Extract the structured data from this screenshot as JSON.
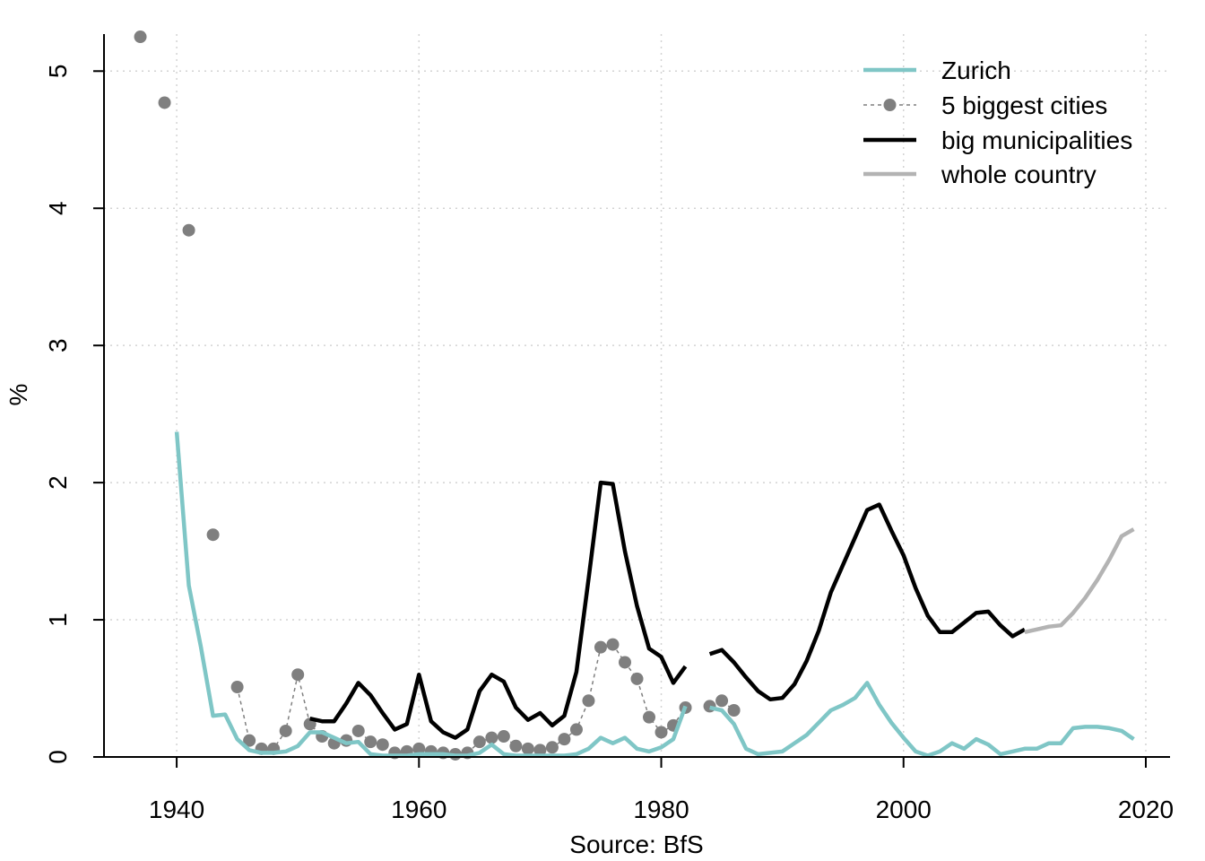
{
  "chart_data": {
    "type": "line",
    "ylabel": "%",
    "xlabel": "Source: BfS",
    "xlim": [
      1934,
      2022
    ],
    "ylim": [
      0,
      5.27
    ],
    "x_ticks": [
      1940,
      1960,
      1980,
      2000,
      2020
    ],
    "y_ticks": [
      0,
      1,
      2,
      3,
      4,
      5
    ],
    "grid": true,
    "legend_position": "top-right",
    "series": [
      {
        "name": "Zurich",
        "style": "line",
        "color": "#7fc6c6",
        "points": [
          [
            1940,
            2.37
          ],
          [
            1941,
            1.25
          ],
          [
            1942,
            0.8
          ],
          [
            1943,
            0.3
          ],
          [
            1944,
            0.31
          ],
          [
            1945,
            0.13
          ],
          [
            1946,
            0.05
          ],
          [
            1947,
            0.03
          ],
          [
            1948,
            0.03
          ],
          [
            1949,
            0.04
          ],
          [
            1950,
            0.08
          ],
          [
            1951,
            0.18
          ],
          [
            1952,
            0.18
          ],
          [
            1953,
            0.14
          ],
          [
            1954,
            0.1
          ],
          [
            1955,
            0.11
          ],
          [
            1956,
            0.02
          ],
          [
            1957,
            0.01
          ],
          [
            1958,
            0.01
          ],
          [
            1959,
            0.01
          ],
          [
            1960,
            0.02
          ],
          [
            1961,
            0.02
          ],
          [
            1962,
            0.02
          ],
          [
            1963,
            0.01
          ],
          [
            1964,
            0.01
          ],
          [
            1965,
            0.03
          ],
          [
            1966,
            0.09
          ],
          [
            1967,
            0.02
          ],
          [
            1968,
            0.01
          ],
          [
            1969,
            0.01
          ],
          [
            1970,
            0.01
          ],
          [
            1971,
            0.01
          ],
          [
            1972,
            0.01
          ],
          [
            1973,
            0.02
          ],
          [
            1974,
            0.06
          ],
          [
            1975,
            0.14
          ],
          [
            1976,
            0.1
          ],
          [
            1977,
            0.14
          ],
          [
            1978,
            0.06
          ],
          [
            1979,
            0.04
          ],
          [
            1980,
            0.07
          ],
          [
            1981,
            0.13
          ],
          [
            1982,
            0.37
          ],
          [
            1983,
            null
          ],
          [
            1984,
            0.36
          ],
          [
            1985,
            0.34
          ],
          [
            1986,
            0.24
          ],
          [
            1987,
            0.06
          ],
          [
            1988,
            0.02
          ],
          [
            1989,
            0.03
          ],
          [
            1990,
            0.04
          ],
          [
            1991,
            0.1
          ],
          [
            1992,
            0.16
          ],
          [
            1993,
            0.25
          ],
          [
            1994,
            0.34
          ],
          [
            1995,
            0.38
          ],
          [
            1996,
            0.43
          ],
          [
            1997,
            0.54
          ],
          [
            1998,
            0.38
          ],
          [
            1999,
            0.25
          ],
          [
            2000,
            0.14
          ],
          [
            2001,
            0.04
          ],
          [
            2002,
            0.01
          ],
          [
            2003,
            0.04
          ],
          [
            2004,
            0.1
          ],
          [
            2005,
            0.06
          ],
          [
            2006,
            0.13
          ],
          [
            2007,
            0.09
          ],
          [
            2008,
            0.02
          ],
          [
            2009,
            0.04
          ],
          [
            2010,
            0.06
          ],
          [
            2011,
            0.06
          ],
          [
            2012,
            0.1
          ],
          [
            2013,
            0.1
          ],
          [
            2014,
            0.21
          ],
          [
            2015,
            0.22
          ],
          [
            2016,
            0.22
          ],
          [
            2017,
            0.21
          ],
          [
            2018,
            0.19
          ],
          [
            2019,
            0.13
          ]
        ]
      },
      {
        "name": "5 biggest cities",
        "style": "dashed-points",
        "color": "#7f7f7f",
        "points": [
          [
            1937,
            5.25
          ],
          [
            1938,
            null
          ],
          [
            1939,
            4.77
          ],
          [
            1940,
            null
          ],
          [
            1941,
            3.84
          ],
          [
            1942,
            null
          ],
          [
            1943,
            1.62
          ],
          [
            1944,
            null
          ],
          [
            1945,
            0.51
          ],
          [
            1946,
            0.12
          ],
          [
            1947,
            0.06
          ],
          [
            1948,
            0.06
          ],
          [
            1949,
            0.19
          ],
          [
            1950,
            0.6
          ],
          [
            1951,
            0.24
          ],
          [
            1952,
            0.15
          ],
          [
            1953,
            0.1
          ],
          [
            1954,
            0.12
          ],
          [
            1955,
            0.19
          ],
          [
            1956,
            0.11
          ],
          [
            1957,
            0.09
          ],
          [
            1958,
            0.03
          ],
          [
            1959,
            0.04
          ],
          [
            1960,
            0.06
          ],
          [
            1961,
            0.04
          ],
          [
            1962,
            0.03
          ],
          [
            1963,
            0.02
          ],
          [
            1964,
            0.03
          ],
          [
            1965,
            0.11
          ],
          [
            1966,
            0.14
          ],
          [
            1967,
            0.15
          ],
          [
            1968,
            0.08
          ],
          [
            1969,
            0.06
          ],
          [
            1970,
            0.05
          ],
          [
            1971,
            0.07
          ],
          [
            1972,
            0.13
          ],
          [
            1973,
            0.2
          ],
          [
            1974,
            0.41
          ],
          [
            1975,
            0.8
          ],
          [
            1976,
            0.82
          ],
          [
            1977,
            0.69
          ],
          [
            1978,
            0.57
          ],
          [
            1979,
            0.29
          ],
          [
            1980,
            0.18
          ],
          [
            1981,
            0.23
          ],
          [
            1982,
            0.36
          ],
          [
            1983,
            null
          ],
          [
            1984,
            0.37
          ],
          [
            1985,
            0.41
          ],
          [
            1986,
            0.34
          ]
        ]
      },
      {
        "name": "big municipalities",
        "style": "line",
        "color": "#000000",
        "points": [
          [
            1951,
            0.28
          ],
          [
            1952,
            0.26
          ],
          [
            1953,
            0.26
          ],
          [
            1954,
            0.39
          ],
          [
            1955,
            0.54
          ],
          [
            1956,
            0.45
          ],
          [
            1957,
            0.32
          ],
          [
            1958,
            0.2
          ],
          [
            1959,
            0.24
          ],
          [
            1960,
            0.6
          ],
          [
            1961,
            0.26
          ],
          [
            1962,
            0.18
          ],
          [
            1963,
            0.14
          ],
          [
            1964,
            0.2
          ],
          [
            1965,
            0.48
          ],
          [
            1966,
            0.6
          ],
          [
            1967,
            0.55
          ],
          [
            1968,
            0.36
          ],
          [
            1969,
            0.27
          ],
          [
            1970,
            0.32
          ],
          [
            1971,
            0.23
          ],
          [
            1972,
            0.3
          ],
          [
            1973,
            0.62
          ],
          [
            1974,
            1.3
          ],
          [
            1975,
            2.0
          ],
          [
            1976,
            1.99
          ],
          [
            1977,
            1.5
          ],
          [
            1978,
            1.1
          ],
          [
            1979,
            0.79
          ],
          [
            1980,
            0.73
          ],
          [
            1981,
            0.54
          ],
          [
            1982,
            0.66
          ],
          [
            1983,
            null
          ],
          [
            1984,
            0.75
          ],
          [
            1985,
            0.78
          ],
          [
            1986,
            0.69
          ],
          [
            1987,
            0.58
          ],
          [
            1988,
            0.48
          ],
          [
            1989,
            0.42
          ],
          [
            1990,
            0.43
          ],
          [
            1991,
            0.53
          ],
          [
            1992,
            0.7
          ],
          [
            1993,
            0.92
          ],
          [
            1994,
            1.2
          ],
          [
            1995,
            1.4
          ],
          [
            1996,
            1.6
          ],
          [
            1997,
            1.8
          ],
          [
            1998,
            1.84
          ],
          [
            1999,
            1.65
          ],
          [
            2000,
            1.47
          ],
          [
            2001,
            1.23
          ],
          [
            2002,
            1.03
          ],
          [
            2003,
            0.91
          ],
          [
            2004,
            0.91
          ],
          [
            2005,
            0.98
          ],
          [
            2006,
            1.05
          ],
          [
            2007,
            1.06
          ],
          [
            2008,
            0.96
          ],
          [
            2009,
            0.88
          ],
          [
            2010,
            0.93
          ]
        ]
      },
      {
        "name": "whole country",
        "style": "line",
        "color": "#b3b3b3",
        "points": [
          [
            2010,
            0.91
          ],
          [
            2011,
            0.93
          ],
          [
            2012,
            0.95
          ],
          [
            2013,
            0.96
          ],
          [
            2014,
            1.05
          ],
          [
            2015,
            1.16
          ],
          [
            2016,
            1.29
          ],
          [
            2017,
            1.44
          ],
          [
            2018,
            1.61
          ],
          [
            2019,
            1.66
          ]
        ]
      }
    ]
  }
}
